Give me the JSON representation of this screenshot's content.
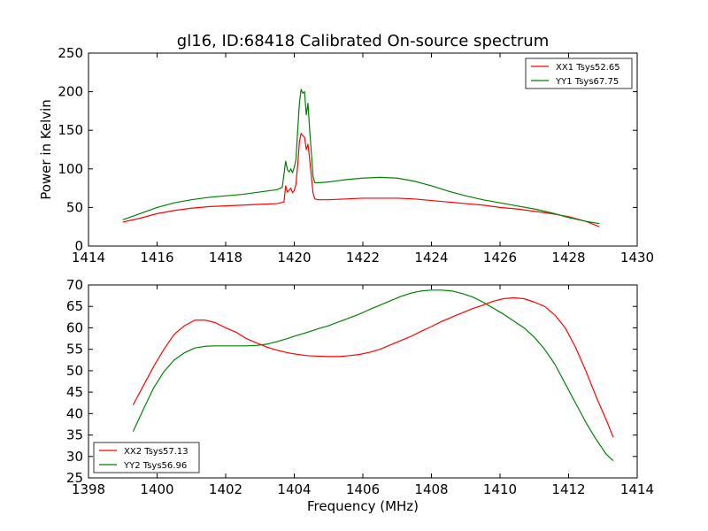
{
  "chart_data": [
    {
      "type": "line",
      "title": "gl16, ID:68418 Calibrated On-source spectrum",
      "xlabel": "",
      "ylabel": "Power in Kelvin",
      "xlim": [
        1414,
        1430
      ],
      "ylim": [
        0,
        250
      ],
      "xticks": [
        1414,
        1416,
        1418,
        1420,
        1422,
        1424,
        1426,
        1428,
        1430
      ],
      "yticks": [
        0,
        50,
        100,
        150,
        200,
        250
      ],
      "grid": false,
      "legend_position": "top-right",
      "series": [
        {
          "name": "XX1 Tsys52.65",
          "color": "#ff0000",
          "x": [
            1415.0,
            1415.5,
            1416.0,
            1416.5,
            1417.0,
            1417.5,
            1418.0,
            1418.5,
            1419.0,
            1419.5,
            1419.7,
            1419.75,
            1419.8,
            1419.85,
            1419.9,
            1419.95,
            1420.0,
            1420.05,
            1420.1,
            1420.15,
            1420.2,
            1420.25,
            1420.3,
            1420.35,
            1420.4,
            1420.45,
            1420.5,
            1420.55,
            1420.6,
            1420.7,
            1421.0,
            1421.5,
            1422.0,
            1422.5,
            1423.0,
            1423.5,
            1424.0,
            1424.5,
            1425.0,
            1425.5,
            1426.0,
            1426.5,
            1427.0,
            1427.5,
            1428.0,
            1428.5,
            1428.9
          ],
          "y": [
            31,
            36,
            42,
            46,
            49,
            51,
            52,
            53,
            54,
            55,
            57,
            78,
            70,
            72,
            75,
            69,
            72,
            80,
            105,
            135,
            146,
            143,
            141,
            125,
            132,
            112,
            90,
            68,
            61,
            60,
            60,
            61,
            62,
            62,
            62,
            61,
            59,
            57,
            55,
            53,
            50,
            48,
            45,
            42,
            38,
            32,
            25
          ]
        },
        {
          "name": "YY1 Tsys67.75",
          "color": "#008000",
          "x": [
            1415.0,
            1415.5,
            1416.0,
            1416.5,
            1417.0,
            1417.5,
            1418.0,
            1418.5,
            1419.0,
            1419.5,
            1419.65,
            1419.75,
            1419.8,
            1419.85,
            1419.9,
            1419.95,
            1420.0,
            1420.05,
            1420.1,
            1420.15,
            1420.2,
            1420.25,
            1420.3,
            1420.35,
            1420.4,
            1420.45,
            1420.5,
            1420.55,
            1420.6,
            1420.7,
            1421.0,
            1421.5,
            1422.0,
            1422.5,
            1423.0,
            1423.5,
            1424.0,
            1424.5,
            1425.0,
            1425.5,
            1426.0,
            1426.5,
            1427.0,
            1427.5,
            1428.0,
            1428.5,
            1428.9
          ],
          "y": [
            34,
            42,
            50,
            56,
            60,
            63,
            65,
            67,
            70,
            73,
            76,
            110,
            99,
            96,
            100,
            95,
            102,
            112,
            150,
            185,
            203,
            198,
            200,
            170,
            185,
            150,
            120,
            90,
            82,
            82,
            83,
            86,
            88,
            89,
            88,
            84,
            78,
            71,
            65,
            60,
            56,
            52,
            48,
            43,
            37,
            32,
            29
          ]
        }
      ]
    },
    {
      "type": "line",
      "title": "",
      "xlabel": "Frequency (MHz)",
      "ylabel": "",
      "xlim": [
        1398,
        1414
      ],
      "ylim": [
        25,
        70
      ],
      "xticks": [
        1398,
        1400,
        1402,
        1404,
        1406,
        1408,
        1410,
        1412,
        1414
      ],
      "yticks": [
        25,
        30,
        35,
        40,
        45,
        50,
        55,
        60,
        65,
        70
      ],
      "grid": false,
      "legend_position": "bottom-left",
      "series": [
        {
          "name": "XX2 Tsys57.13",
          "color": "#ff0000",
          "x": [
            1399.3,
            1399.6,
            1399.9,
            1400.2,
            1400.5,
            1400.8,
            1401.1,
            1401.4,
            1401.7,
            1402.0,
            1402.3,
            1402.6,
            1402.9,
            1403.2,
            1403.5,
            1403.8,
            1404.1,
            1404.4,
            1404.7,
            1405.0,
            1405.3,
            1405.6,
            1405.9,
            1406.2,
            1406.5,
            1406.8,
            1407.1,
            1407.4,
            1407.7,
            1408.0,
            1408.3,
            1408.6,
            1408.9,
            1409.2,
            1409.5,
            1409.8,
            1410.1,
            1410.4,
            1410.7,
            1411.0,
            1411.3,
            1411.6,
            1411.9,
            1412.2,
            1412.5,
            1412.8,
            1413.1,
            1413.3
          ],
          "y": [
            42,
            46.5,
            51,
            55,
            58.5,
            60.5,
            61.8,
            61.8,
            61.2,
            60,
            59,
            57.5,
            56.5,
            55.5,
            54.8,
            54.2,
            53.8,
            53.5,
            53.4,
            53.3,
            53.3,
            53.5,
            53.8,
            54.3,
            55,
            56,
            57,
            58,
            59.2,
            60.3,
            61.5,
            62.5,
            63.5,
            64.5,
            65.3,
            66.2,
            66.8,
            67,
            66.8,
            66,
            65,
            63,
            60,
            55.5,
            50,
            44,
            38.5,
            34.5
          ]
        },
        {
          "name": "YY2 Tsys56.96",
          "color": "#008000",
          "x": [
            1399.3,
            1399.6,
            1399.9,
            1400.2,
            1400.5,
            1400.8,
            1401.1,
            1401.4,
            1401.7,
            1402.0,
            1402.3,
            1402.6,
            1402.9,
            1403.2,
            1403.5,
            1403.8,
            1404.1,
            1404.4,
            1404.7,
            1405.0,
            1405.3,
            1405.6,
            1405.9,
            1406.2,
            1406.5,
            1406.8,
            1407.1,
            1407.4,
            1407.7,
            1408.0,
            1408.3,
            1408.6,
            1408.9,
            1409.2,
            1409.5,
            1409.8,
            1410.1,
            1410.4,
            1410.7,
            1411.0,
            1411.3,
            1411.6,
            1411.9,
            1412.2,
            1412.5,
            1412.8,
            1413.1,
            1413.3
          ],
          "y": [
            35.8,
            41,
            46,
            49.8,
            52.5,
            54.2,
            55.3,
            55.7,
            55.8,
            55.8,
            55.8,
            55.8,
            55.9,
            56.2,
            56.8,
            57.5,
            58.3,
            59,
            59.8,
            60.5,
            61.4,
            62.3,
            63.2,
            64.3,
            65.3,
            66.3,
            67.3,
            68.1,
            68.6,
            68.8,
            68.8,
            68.6,
            68,
            67.2,
            66,
            64.6,
            63.2,
            61.6,
            60,
            57.8,
            55,
            51.5,
            47,
            42.5,
            38,
            34,
            30.5,
            29
          ]
        }
      ]
    }
  ]
}
